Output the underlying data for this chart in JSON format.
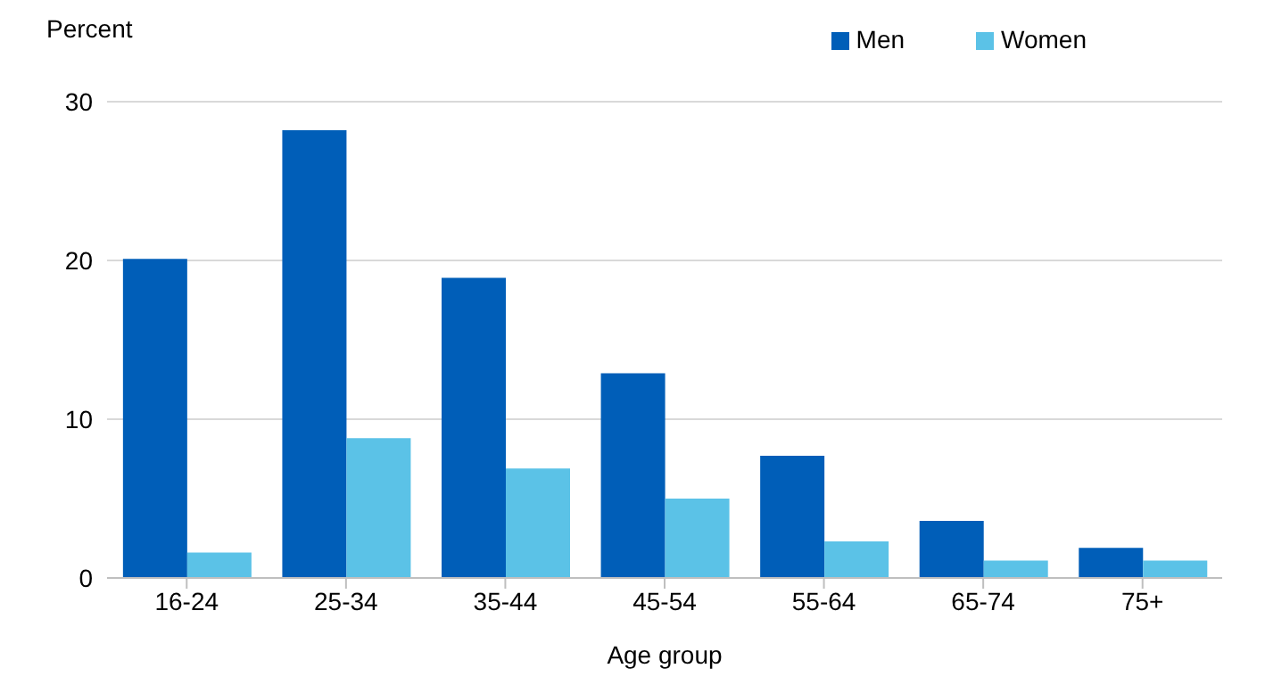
{
  "chart_data": {
    "type": "bar",
    "ylabel": "Percent",
    "xlabel": "Age group",
    "categories": [
      "16-24",
      "25-34",
      "35-44",
      "45-54",
      "55-64",
      "65-74",
      "75+"
    ],
    "series": [
      {
        "name": "Men",
        "color": "#005eb8",
        "values": [
          20.1,
          28.2,
          18.9,
          12.9,
          7.7,
          3.6,
          1.9
        ]
      },
      {
        "name": "Women",
        "color": "#5bc2e7",
        "values": [
          1.6,
          8.8,
          6.9,
          5.0,
          2.3,
          1.1,
          1.1
        ]
      }
    ],
    "ylim": [
      0,
      30
    ],
    "yticks": [
      0,
      10,
      20,
      30
    ],
    "grid": "y",
    "legend": "top right"
  }
}
